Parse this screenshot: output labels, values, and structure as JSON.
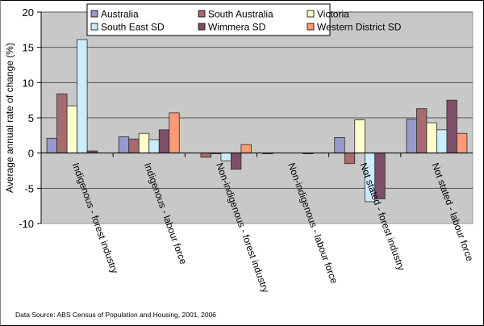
{
  "chart_data": {
    "type": "bar",
    "title": "",
    "xlabel": "",
    "ylabel": "Average annual rate of change (%)",
    "ylim": [
      -10,
      20
    ],
    "yticks": [
      -10,
      -5,
      0,
      5,
      10,
      15,
      20
    ],
    "grid": true,
    "legend_position": "top",
    "categories": [
      "Indigenous - forest industry",
      "Indigenous - labour force",
      "Non-indigenous - forest industry",
      "Non-indigenous - labour force",
      "Not stated - forest industry",
      "Not stated - labour force"
    ],
    "series": [
      {
        "name": "Australia",
        "color": "#9999CC",
        "values": [
          2.1,
          2.3,
          0.0,
          -0.1,
          2.2,
          4.8
        ]
      },
      {
        "name": "South Australia",
        "color": "#A66B6E",
        "values": [
          8.4,
          2.0,
          -0.6,
          0.0,
          -1.5,
          6.3
        ]
      },
      {
        "name": "Victoria",
        "color": "#FFFFCC",
        "values": [
          6.7,
          2.8,
          -0.1,
          0.0,
          4.7,
          4.3
        ]
      },
      {
        "name": "South East SD",
        "color": "#CCECFF",
        "values": [
          16.1,
          1.9,
          -1.1,
          0.0,
          -6.9,
          3.3
        ]
      },
      {
        "name": "Wimmera SD",
        "color": "#7F4F6A",
        "values": [
          0.3,
          3.3,
          -2.3,
          -0.1,
          -6.5,
          7.5
        ]
      },
      {
        "name": "Western District SD",
        "color": "#FF9977",
        "values": [
          0.0,
          5.7,
          1.2,
          0.0,
          0.0,
          2.8
        ]
      }
    ],
    "source_note": "Data Source: ABS Census of Population and Housing, 2001, 2006"
  },
  "colors": {
    "plot_background": "#C8C8C8",
    "gridline": "#555555",
    "bar_outline": "#2a2a2a"
  }
}
